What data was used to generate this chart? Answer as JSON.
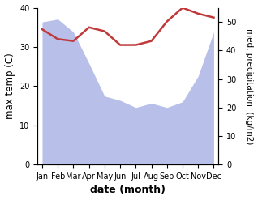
{
  "months": [
    "Jan",
    "Feb",
    "Mar",
    "Apr",
    "May",
    "Jun",
    "Jul",
    "Aug",
    "Sep",
    "Oct",
    "Nov",
    "Dec"
  ],
  "x": [
    0,
    1,
    2,
    3,
    4,
    5,
    6,
    7,
    8,
    9,
    10,
    11
  ],
  "temperature": [
    34.5,
    32.0,
    31.5,
    35.0,
    34.0,
    30.5,
    30.5,
    31.5,
    36.5,
    40.0,
    38.5,
    37.5
  ],
  "precipitation": [
    50.0,
    51.0,
    46.5,
    35.5,
    24.0,
    22.5,
    20.0,
    21.5,
    20.0,
    22.0,
    31.0,
    46.5
  ],
  "temp_color": "#c0393b",
  "precip_color": "#b8c0ea",
  "ylim_left": [
    0,
    40
  ],
  "ylim_right": [
    0,
    55
  ],
  "yticks_left": [
    0,
    10,
    20,
    30,
    40
  ],
  "yticks_right": [
    0,
    10,
    20,
    30,
    40,
    50
  ],
  "ylabel_left": "max temp (C)",
  "ylabel_right": "med. precipitation  (kg/m2)",
  "xlabel": "date (month)",
  "bg_color": "#ffffff",
  "tick_fontsize": 7.0,
  "label_fontsize": 8.5,
  "xlabel_fontsize": 9.0,
  "linewidth": 1.8
}
